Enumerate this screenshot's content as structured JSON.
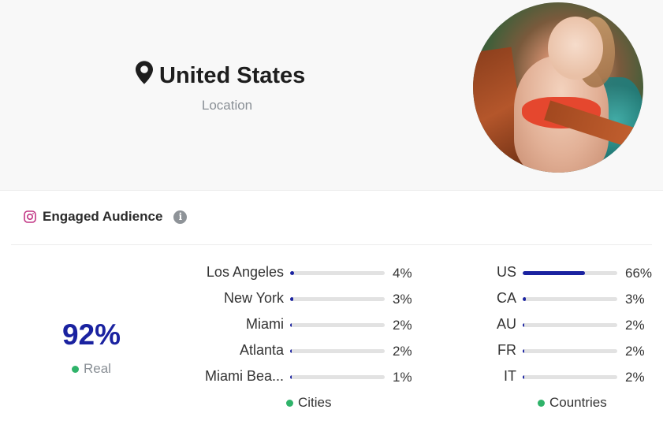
{
  "location": {
    "title": "United States",
    "label": "Location"
  },
  "section": {
    "title": "Engaged Audience",
    "info": "i"
  },
  "real": {
    "value": "92%",
    "label": "Real"
  },
  "cities": {
    "legend": "Cities",
    "items": [
      {
        "name": "Los Angeles",
        "pct_label": "4%",
        "pct": 4
      },
      {
        "name": "New York",
        "pct_label": "3%",
        "pct": 3
      },
      {
        "name": "Miami",
        "pct_label": "2%",
        "pct": 2
      },
      {
        "name": "Atlanta",
        "pct_label": "2%",
        "pct": 2
      },
      {
        "name": "Miami Bea...",
        "pct_label": "1%",
        "pct": 1
      }
    ]
  },
  "countries": {
    "legend": "Countries",
    "items": [
      {
        "name": "US",
        "pct_label": "66%",
        "pct": 66
      },
      {
        "name": "CA",
        "pct_label": "3%",
        "pct": 3
      },
      {
        "name": "AU",
        "pct_label": "2%",
        "pct": 2
      },
      {
        "name": "FR",
        "pct_label": "2%",
        "pct": 2
      },
      {
        "name": "IT",
        "pct_label": "2%",
        "pct": 2
      }
    ]
  },
  "colors": {
    "accent": "#1a22a0",
    "legend_dot": "#2fb36a",
    "track": "#e2e2e2"
  },
  "icons": {
    "location": "map-pin-icon",
    "instagram": "instagram-icon",
    "info": "info-icon"
  }
}
